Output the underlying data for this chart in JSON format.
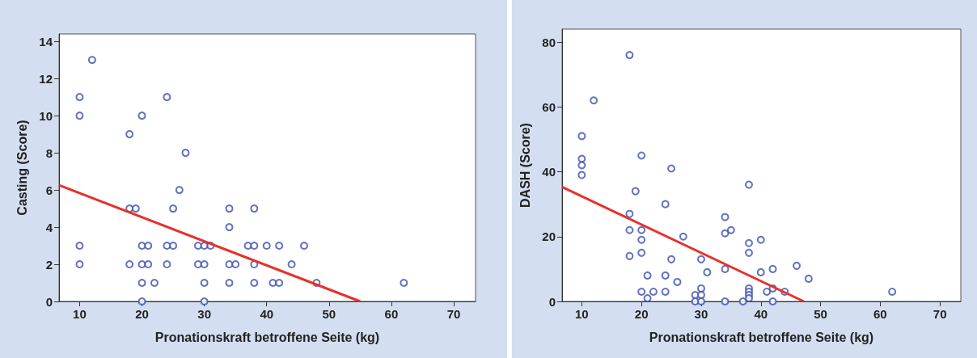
{
  "chart_data": [
    {
      "type": "scatter",
      "xlabel": "Pronationskraft betroffene Seite (kg)",
      "ylabel": "Casting (Score)",
      "xlim": [
        6.7,
        73.5
      ],
      "ylim": [
        0,
        14.4
      ],
      "xticks": [
        10,
        20,
        30,
        40,
        50,
        60,
        70
      ],
      "yticks": [
        0,
        2,
        4,
        6,
        8,
        10,
        12,
        14
      ],
      "grid": false,
      "series": [
        {
          "marker": "circle",
          "color": "#3b4fb0",
          "x": [
            10,
            10,
            10,
            10,
            12,
            18,
            18,
            18,
            19,
            20,
            20,
            20,
            20,
            20,
            21,
            21,
            22,
            24,
            24,
            24,
            25,
            25,
            26,
            27,
            29,
            29,
            30,
            30,
            30,
            30,
            31,
            34,
            34,
            34,
            34,
            35,
            37,
            38,
            38,
            38,
            38,
            40,
            41,
            42,
            42,
            44,
            46,
            48,
            62
          ],
          "values": [
            11,
            10,
            3,
            2,
            13,
            9,
            5,
            2,
            5,
            10,
            3,
            2,
            1,
            0,
            3,
            2,
            1,
            11,
            3,
            2,
            5,
            3,
            6,
            8,
            3,
            2,
            3,
            2,
            1,
            0,
            3,
            5,
            4,
            2,
            1,
            2,
            3,
            5,
            3,
            2,
            1,
            3,
            1,
            3,
            1,
            2,
            3,
            1,
            1
          ]
        },
        {
          "type": "line",
          "color": "#e8302a",
          "x": [
            6.7,
            55
          ],
          "values": [
            6.26,
            0
          ]
        }
      ]
    },
    {
      "type": "scatter",
      "xlabel": "Pronationskraft betroffene Seite (kg)",
      "ylabel": "DASH (Score)",
      "xlim": [
        6.7,
        73.5
      ],
      "ylim": [
        0,
        84
      ],
      "xticks": [
        10,
        20,
        30,
        40,
        50,
        60,
        70
      ],
      "yticks": [
        0,
        20,
        40,
        60,
        80
      ],
      "grid": false,
      "series": [
        {
          "marker": "circle",
          "color": "#3b4fb0",
          "x": [
            10,
            10,
            10,
            10,
            12,
            18,
            18,
            18,
            18,
            19,
            20,
            20,
            20,
            20,
            20,
            21,
            21,
            22,
            24,
            24,
            24,
            25,
            25,
            26,
            27,
            29,
            29,
            30,
            30,
            30,
            30,
            31,
            34,
            34,
            34,
            34,
            35,
            37,
            38,
            38,
            38,
            38,
            38,
            38,
            38,
            40,
            40,
            41,
            42,
            42,
            42,
            44,
            46,
            48,
            62
          ],
          "values": [
            51,
            44,
            42,
            39,
            62,
            76,
            27,
            22,
            14,
            34,
            45,
            22,
            19,
            15,
            3,
            8,
            1,
            3,
            30,
            8,
            3,
            41,
            13,
            6,
            20,
            2,
            0,
            13,
            4,
            2,
            0,
            9,
            26,
            21,
            10,
            0,
            22,
            0,
            36,
            18,
            15,
            4,
            3,
            2,
            1,
            19,
            9,
            3,
            10,
            4,
            0,
            3,
            11,
            7,
            3
          ]
        },
        {
          "type": "line",
          "color": "#e8302a",
          "x": [
            6.7,
            47.2
          ],
          "values": [
            35.3,
            0
          ]
        }
      ]
    }
  ]
}
